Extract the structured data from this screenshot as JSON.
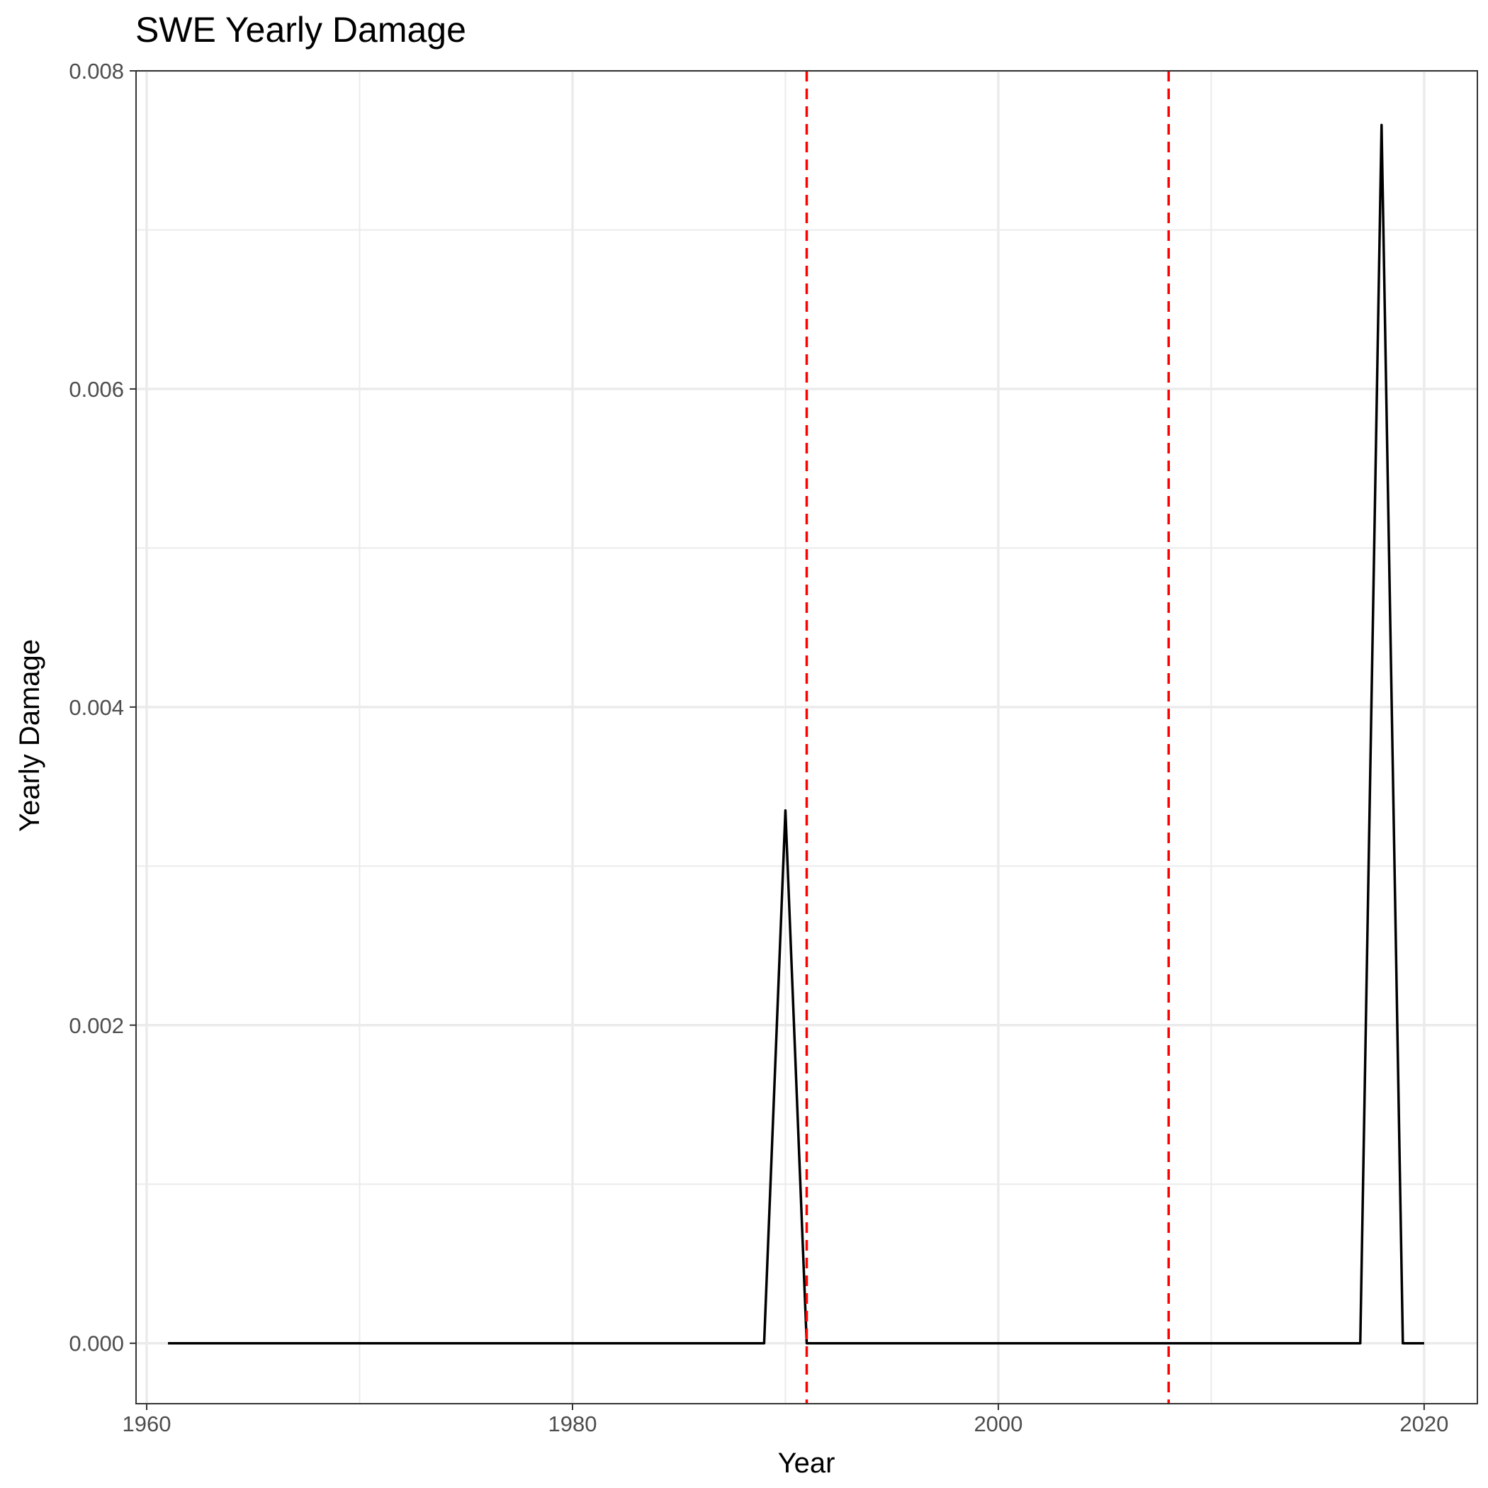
{
  "chart_data": {
    "type": "line",
    "title": "SWE Yearly Damage",
    "xlabel": "Year",
    "ylabel": "Yearly Damage",
    "xlim": [
      1959.5,
      2022.5
    ],
    "ylim": [
      -0.00038,
      0.008
    ],
    "x_ticks": [
      1960,
      1980,
      2000,
      2020
    ],
    "x_tick_labels": [
      "1960",
      "1980",
      "2000",
      "2020"
    ],
    "x_minor_ticks": [
      1970,
      1990,
      2010
    ],
    "y_ticks": [
      0,
      0.002,
      0.004,
      0.006,
      0.008
    ],
    "y_tick_labels": [
      "0.000",
      "0.002",
      "0.004",
      "0.006",
      "0.008"
    ],
    "y_minor_ticks": [
      0.001,
      0.003,
      0.005,
      0.007
    ],
    "grid": true,
    "legend": "none",
    "series": [
      {
        "color": "#000000",
        "x": [
          1961,
          1962,
          1963,
          1964,
          1965,
          1966,
          1967,
          1968,
          1969,
          1970,
          1971,
          1972,
          1973,
          1974,
          1975,
          1976,
          1977,
          1978,
          1979,
          1980,
          1981,
          1982,
          1983,
          1984,
          1985,
          1986,
          1987,
          1988,
          1989,
          1990,
          1991,
          1992,
          1993,
          1994,
          1995,
          1996,
          1997,
          1998,
          1999,
          2000,
          2001,
          2002,
          2003,
          2004,
          2005,
          2006,
          2007,
          2008,
          2009,
          2010,
          2011,
          2012,
          2013,
          2014,
          2015,
          2016,
          2017,
          2018,
          2019,
          2020
        ],
        "values": [
          0,
          0,
          0,
          0,
          0,
          0,
          0,
          0,
          0,
          0,
          0,
          0,
          0,
          0,
          0,
          0,
          0,
          0,
          0,
          0,
          0,
          0,
          0,
          0,
          0,
          0,
          0,
          0,
          0,
          0.00335,
          0,
          0,
          0,
          0,
          0,
          0,
          0,
          0,
          0,
          0,
          0,
          0,
          0,
          0,
          0,
          0,
          0,
          0,
          0,
          0,
          0,
          0,
          0,
          0,
          0,
          0,
          0,
          0.00766,
          0,
          0
        ]
      }
    ],
    "reference_lines": [
      {
        "orientation": "vertical",
        "x": 1991,
        "color": "#ff0000",
        "style": "dashed"
      },
      {
        "orientation": "vertical",
        "x": 2008,
        "color": "#ff0000",
        "style": "dashed"
      }
    ],
    "colors": {
      "background": "#ffffff",
      "panel_border": "#333333",
      "grid_major": "#ebebeb",
      "grid_minor": "#ebebeb",
      "tick_text": "#4d4d4d",
      "line": "#000000",
      "reference": "#ff0000"
    }
  }
}
